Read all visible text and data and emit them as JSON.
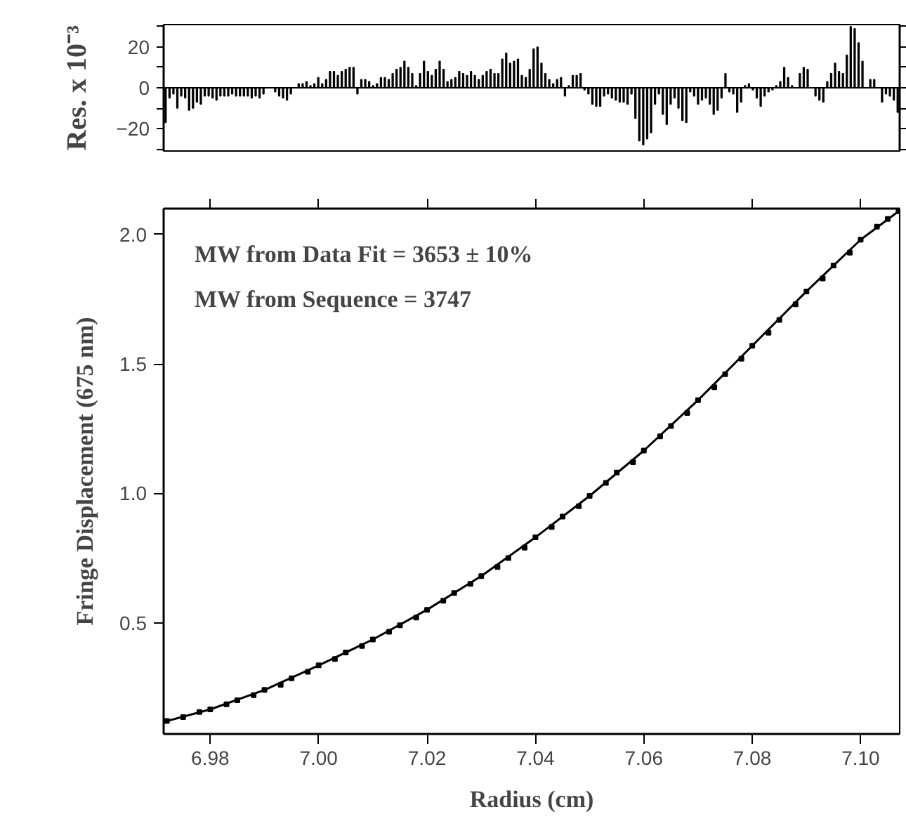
{
  "chart_data": [
    {
      "type": "bar",
      "ylabel": "Res. x 10⁻³",
      "tick_labels": "y",
      "ylim": [
        -31,
        31
      ],
      "yticks": [
        -20,
        0,
        20
      ],
      "categories": [
        null,
        null,
        null,
        null,
        null,
        null,
        null,
        null,
        null,
        null,
        null,
        null,
        null,
        null,
        null,
        null,
        null,
        null,
        null,
        null,
        null,
        null,
        null,
        null,
        null,
        null,
        null,
        null,
        null,
        null,
        null,
        null,
        null,
        null,
        null,
        null,
        null,
        null,
        null,
        null,
        null,
        null,
        null,
        null,
        null,
        null,
        null,
        null,
        null,
        null,
        null,
        null,
        null,
        null,
        null,
        null,
        null,
        null,
        null,
        null,
        null,
        null,
        null,
        null,
        null,
        null,
        null,
        null,
        null,
        null,
        null,
        null,
        null,
        null,
        null,
        null,
        null,
        null,
        null,
        null,
        null,
        null,
        null,
        null,
        null,
        null,
        null,
        null,
        null,
        null,
        null,
        null,
        null,
        null,
        null,
        null,
        null,
        null,
        null,
        null,
        null,
        null,
        null,
        null,
        null,
        null,
        null,
        null,
        null,
        null,
        null,
        null,
        null,
        null,
        null,
        null,
        null,
        null,
        null,
        null,
        null,
        null,
        null,
        null,
        null,
        null,
        null,
        null,
        null,
        null,
        null,
        null,
        null,
        null,
        null,
        null,
        null,
        null,
        null,
        null,
        null,
        null,
        null,
        null,
        null,
        null,
        null,
        null,
        null,
        null,
        null,
        null,
        null,
        null,
        null,
        null,
        null,
        null,
        null,
        null,
        null,
        null,
        null,
        null,
        null,
        null,
        null,
        null,
        null,
        null,
        null,
        null,
        null,
        null,
        null,
        null,
        null,
        null,
        null,
        null,
        null,
        null,
        null,
        null,
        null,
        null,
        null,
        null
      ],
      "values": [
        -17,
        -5,
        -3,
        -10,
        -4,
        -5,
        -11,
        -10,
        -7,
        -8,
        -4,
        -4,
        -5,
        -6,
        -4,
        -4,
        -4,
        -3,
        -4,
        -4,
        -4,
        -4,
        -5,
        -4,
        -5,
        -3,
        0,
        0,
        -2,
        -4,
        -5,
        -6,
        -3,
        0,
        2,
        2,
        3,
        1,
        2,
        5,
        2,
        4,
        8,
        8,
        6,
        8,
        9,
        10,
        10,
        -3,
        4,
        4,
        3,
        1,
        2,
        5,
        5,
        4,
        7,
        9,
        10,
        13,
        10,
        7,
        1,
        7,
        13,
        8,
        6,
        9,
        13,
        9,
        3,
        4,
        5,
        8,
        7,
        6,
        8,
        6,
        4,
        6,
        8,
        9,
        7,
        7,
        14,
        17,
        12,
        13,
        14,
        6,
        5,
        9,
        19,
        20,
        12,
        7,
        4,
        2,
        4,
        5,
        -4,
        1,
        6,
        6,
        7,
        -1,
        -3,
        -8,
        -9,
        -9,
        -4,
        -3,
        -5,
        -6,
        -7,
        -7,
        -8,
        -3,
        -15,
        -26,
        -28,
        -25,
        -22,
        -8,
        -3,
        -13,
        -18,
        -8,
        -5,
        -10,
        -16,
        -17,
        -2,
        -4,
        -8,
        -6,
        -5,
        -8,
        -13,
        -11,
        -5,
        7,
        -2,
        -3,
        -12,
        -7,
        1,
        2,
        -1,
        -5,
        -9,
        -4,
        -2,
        -1,
        1,
        3,
        10,
        5,
        1,
        0,
        7,
        10,
        9,
        0,
        -4,
        -6,
        -7,
        3,
        7,
        12,
        8,
        7,
        16,
        30,
        29,
        22,
        13,
        0,
        4,
        4,
        0,
        -7,
        -3,
        -4,
        -6,
        -12
      ],
      "color": "#000000"
    },
    {
      "type": "scatter",
      "xlabel": "Radius (cm)",
      "ylabel": "Fringe Displacement (675 nm)",
      "xlim": [
        6.9714,
        7.1072
      ],
      "ylim": [
        0.07,
        2.1
      ],
      "xticks": [
        {
          "value": 6.98,
          "label": "6.98"
        },
        {
          "value": 7.0,
          "label": "7.00"
        },
        {
          "value": 7.02,
          "label": "7.02"
        },
        {
          "value": 7.04,
          "label": "7.04"
        },
        {
          "value": 7.06,
          "label": "7.06"
        },
        {
          "value": 7.08,
          "label": "7.08"
        },
        {
          "value": 7.1,
          "label": "7.10"
        }
      ],
      "yticks": [
        {
          "value": 0.5,
          "label": "0.5"
        },
        {
          "value": 1.0,
          "label": "1.0"
        },
        {
          "value": 1.5,
          "label": "1.5"
        },
        {
          "value": 2.0,
          "label": "2.0"
        }
      ],
      "annotations": [
        "MW from Data Fit = 3653 ± 10%",
        "MW from Sequence = 3747"
      ],
      "series": [
        {
          "type": "scatter",
          "marker": "square",
          "color": "#000000",
          "x": [
            6.972,
            6.975,
            6.978,
            6.98,
            6.983,
            6.985,
            6.988,
            6.99,
            6.993,
            6.995,
            6.998,
            7.0,
            7.003,
            7.005,
            7.008,
            7.01,
            7.013,
            7.015,
            7.018,
            7.02,
            7.023,
            7.025,
            7.028,
            7.03,
            7.033,
            7.035,
            7.038,
            7.04,
            7.043,
            7.045,
            7.048,
            7.05,
            7.053,
            7.055,
            7.058,
            7.06,
            7.063,
            7.065,
            7.068,
            7.07,
            7.073,
            7.075,
            7.078,
            7.08,
            7.083,
            7.085,
            7.088,
            7.09,
            7.093,
            7.095,
            7.098,
            7.1,
            7.103,
            7.105,
            7.107
          ],
          "values": [
            0.12,
            0.135,
            0.155,
            0.165,
            0.185,
            0.2,
            0.22,
            0.24,
            0.26,
            0.285,
            0.31,
            0.335,
            0.36,
            0.385,
            0.41,
            0.435,
            0.465,
            0.49,
            0.52,
            0.55,
            0.585,
            0.615,
            0.65,
            0.68,
            0.715,
            0.75,
            0.79,
            0.83,
            0.87,
            0.91,
            0.95,
            0.99,
            1.04,
            1.08,
            1.12,
            1.165,
            1.22,
            1.26,
            1.31,
            1.36,
            1.41,
            1.46,
            1.52,
            1.57,
            1.62,
            1.67,
            1.73,
            1.78,
            1.83,
            1.88,
            1.93,
            1.98,
            2.03,
            2.06,
            2.09
          ]
        },
        {
          "type": "line",
          "color": "#000000",
          "x": [
            6.972,
            6.98,
            6.99,
            7.0,
            7.01,
            7.02,
            7.03,
            7.04,
            7.05,
            7.06,
            7.07,
            7.08,
            7.09,
            7.1,
            7.107
          ],
          "values": [
            0.12,
            0.165,
            0.24,
            0.335,
            0.435,
            0.55,
            0.68,
            0.83,
            0.99,
            1.165,
            1.36,
            1.57,
            1.78,
            1.98,
            2.09
          ]
        }
      ]
    }
  ]
}
